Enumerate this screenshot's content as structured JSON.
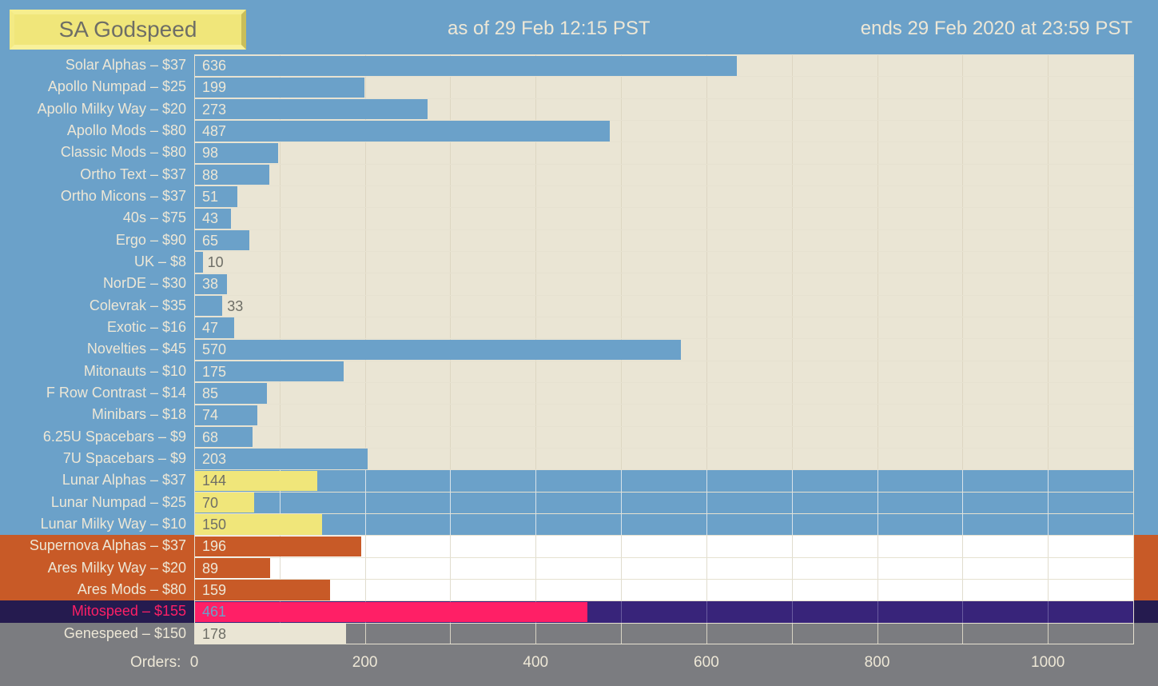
{
  "header": {
    "title": "SA Godspeed",
    "as_of": "as of 29 Feb 12:15 PST",
    "ends": "ends 29 Feb 2020 at 23:59 PST"
  },
  "colors": {
    "blue": "#6BA1C9",
    "cream": "#EAE5D4",
    "yellow": "#F0E67A",
    "orange": "#C85A27",
    "white": "#FFFFFF",
    "mito_bar": "#FF1F66",
    "mito_bg": "#38247A",
    "mito_label_bg": "#251B4F",
    "grey": "#7B7C80"
  },
  "chart_data": {
    "type": "bar",
    "orientation": "horizontal",
    "title": "SA Godspeed",
    "xlabel": "Orders:",
    "xlim": [
      0,
      1100
    ],
    "xticks": [
      0,
      200,
      400,
      600,
      800,
      1000
    ],
    "grid": true,
    "categories": [
      "Solar Alphas – $37",
      "Apollo Numpad – $25",
      "Apollo Milky Way – $20",
      "Apollo Mods – $80",
      "Classic Mods – $80",
      "Ortho Text – $37",
      "Ortho Micons – $37",
      "40s – $75",
      "Ergo – $90",
      "UK – $8",
      "NorDE – $30",
      "Colevrak – $35",
      "Exotic – $16",
      "Novelties – $45",
      "Mitonauts – $10",
      "F Row Contrast – $14",
      "Minibars – $18",
      "6.25U Spacebars – $9",
      "7U Spacebars – $9",
      "Lunar Alphas – $37",
      "Lunar Numpad – $25",
      "Lunar Milky Way – $10",
      "Supernova Alphas – $37",
      "Ares Milky Way – $20",
      "Ares Mods – $80",
      "Mitospeed – $155",
      "Genespeed – $150"
    ],
    "values": [
      636,
      199,
      273,
      487,
      98,
      88,
      51,
      43,
      65,
      10,
      38,
      33,
      47,
      570,
      175,
      85,
      74,
      68,
      203,
      144,
      70,
      150,
      196,
      89,
      159,
      461,
      178
    ],
    "groups": [
      "solar",
      "solar",
      "solar",
      "solar",
      "solar",
      "solar",
      "solar",
      "solar",
      "solar",
      "solar",
      "solar",
      "solar",
      "solar",
      "solar",
      "solar",
      "solar",
      "solar",
      "solar",
      "solar",
      "lunar",
      "lunar",
      "lunar",
      "ares",
      "ares",
      "ares",
      "mito",
      "gene"
    ]
  }
}
